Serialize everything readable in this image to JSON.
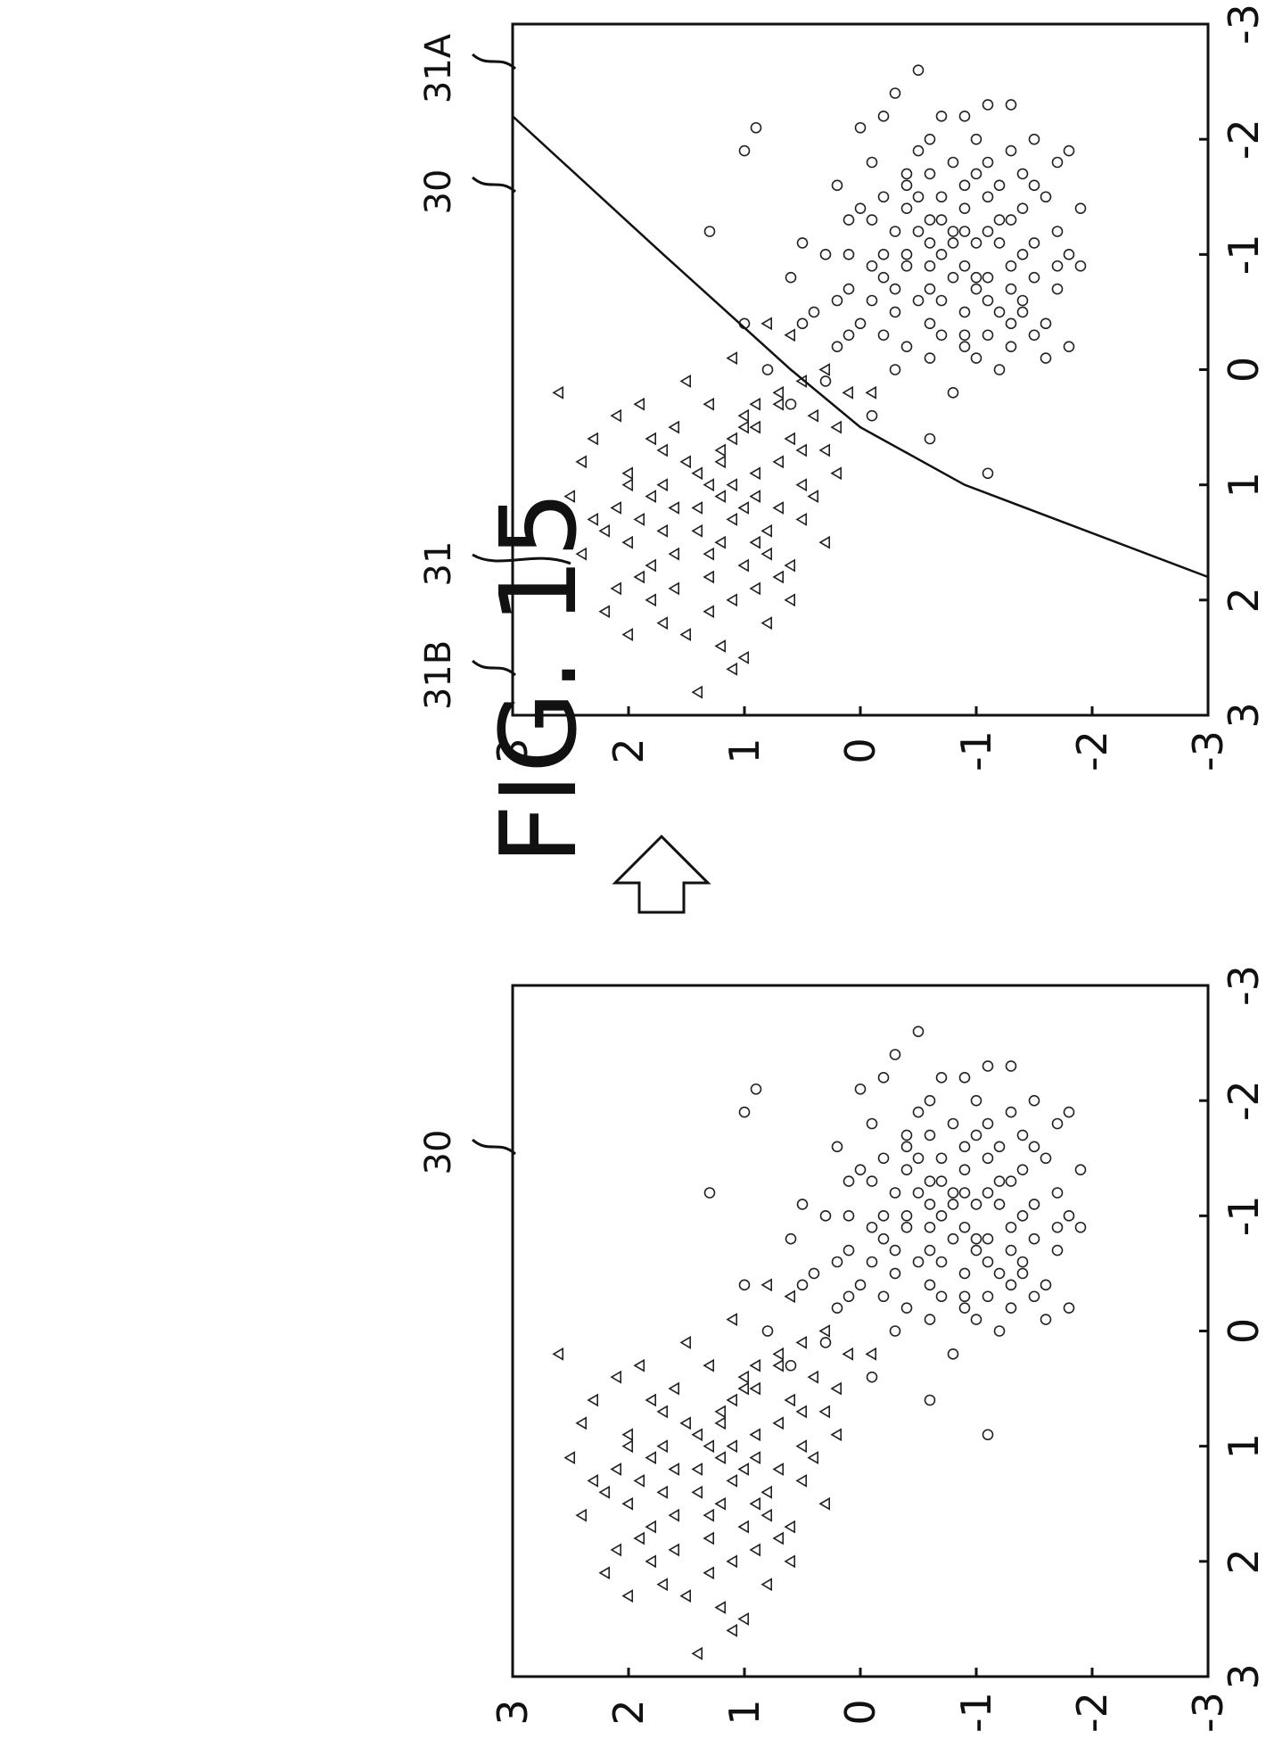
{
  "figure_title": "FIG. 15",
  "transition_icon": "hollow-arrow-icon",
  "chart_data": [
    {
      "type": "scatter",
      "panel": "before",
      "xlim": [
        -3,
        3
      ],
      "ylim": [
        -3,
        3
      ],
      "x_ticks": [
        "-3",
        "-2",
        "-1",
        "0",
        "1",
        "2",
        "3"
      ],
      "y_ticks": [
        "-3",
        "-2",
        "-1",
        "0",
        "1",
        "2",
        "3"
      ],
      "grid": false,
      "ref_labels": [
        "30"
      ],
      "series": [
        {
          "marker": "triangle",
          "points": [
            [
              1.0,
              2.0
            ],
            [
              1.2,
              1.4
            ],
            [
              0.5,
              1.0
            ],
            [
              1.4,
              0.8
            ],
            [
              0.2,
              0.7
            ],
            [
              1.5,
              1.2
            ],
            [
              0.8,
              1.5
            ],
            [
              1.8,
              1.9
            ],
            [
              2.2,
              1.7
            ],
            [
              0.3,
              1.3
            ],
            [
              1.1,
              0.4
            ],
            [
              0.6,
              1.8
            ],
            [
              1.3,
              2.3
            ],
            [
              2.0,
              1.1
            ],
            [
              0.9,
              0.9
            ],
            [
              1.6,
              1.6
            ],
            [
              0.4,
              2.1
            ],
            [
              1.7,
              0.6
            ],
            [
              2.4,
              1.2
            ],
            [
              0.1,
              1.5
            ],
            [
              1.0,
              1.1
            ],
            [
              1.2,
              0.7
            ],
            [
              0.7,
              0.3
            ],
            [
              1.5,
              2.0
            ],
            [
              0.8,
              2.4
            ],
            [
              2.1,
              2.2
            ],
            [
              1.9,
              0.9
            ],
            [
              0.5,
              1.6
            ],
            [
              1.4,
              1.4
            ],
            [
              0.3,
              0.9
            ],
            [
              1.1,
              1.8
            ],
            [
              0.6,
              0.6
            ],
            [
              2.3,
              1.5
            ],
            [
              1.0,
              1.3
            ],
            [
              0.9,
              2.0
            ],
            [
              1.8,
              1.3
            ],
            [
              0.2,
              2.6
            ],
            [
              1.3,
              0.5
            ],
            [
              1.6,
              0.8
            ],
            [
              2.5,
              1.0
            ],
            [
              0.4,
              0.4
            ],
            [
              1.2,
              1.0
            ],
            [
              0.7,
              1.2
            ],
            [
              2.0,
              1.8
            ],
            [
              1.5,
              0.3
            ],
            [
              0.8,
              0.7
            ],
            [
              1.9,
              2.1
            ],
            [
              1.1,
              2.5
            ],
            [
              0.5,
              0.2
            ],
            [
              1.7,
              1.0
            ],
            [
              2.8,
              1.4
            ],
            [
              1.0,
              0.5
            ],
            [
              0.3,
              1.9
            ],
            [
              1.4,
              1.7
            ],
            [
              2.2,
              0.8
            ],
            [
              0.6,
              2.3
            ],
            [
              1.2,
              1.6
            ],
            [
              0.9,
              0.2
            ],
            [
              1.6,
              2.4
            ],
            [
              -0.1,
              1.1
            ],
            [
              0.1,
              0.5
            ],
            [
              0.0,
              0.3
            ],
            [
              -0.3,
              0.6
            ],
            [
              -0.4,
              0.8
            ],
            [
              0.2,
              0.1
            ],
            [
              1.3,
              1.1
            ],
            [
              1.8,
              0.7
            ],
            [
              0.4,
              1.0
            ],
            [
              1.1,
              0.9
            ],
            [
              2.1,
              1.3
            ],
            [
              0.7,
              1.7
            ],
            [
              1.5,
              0.9
            ],
            [
              0.9,
              1.4
            ],
            [
              1.3,
              1.9
            ],
            [
              0.6,
              1.1
            ],
            [
              1.9,
              1.6
            ],
            [
              2.6,
              1.1
            ],
            [
              1.4,
              2.2
            ],
            [
              0.2,
              -0.1
            ],
            [
              0.5,
              0.9
            ],
            [
              1.0,
              1.7
            ],
            [
              1.7,
              1.8
            ],
            [
              0.8,
              1.2
            ],
            [
              2.0,
              0.6
            ],
            [
              1.2,
              2.1
            ],
            [
              0.3,
              0.7
            ],
            [
              1.6,
              1.3
            ],
            [
              2.3,
              2.0
            ],
            [
              0.7,
              0.5
            ],
            [
              1.1,
              1.2
            ]
          ]
        },
        {
          "marker": "circle",
          "points": [
            [
              -0.8,
              -1.0
            ],
            [
              -1.2,
              -0.5
            ],
            [
              -0.6,
              0.2
            ],
            [
              -1.0,
              -0.7
            ],
            [
              -1.5,
              -0.2
            ],
            [
              -0.4,
              -0.6
            ],
            [
              -0.9,
              -1.3
            ],
            [
              -1.3,
              0.1
            ],
            [
              -0.7,
              -0.3
            ],
            [
              -1.8,
              -0.8
            ],
            [
              -0.3,
              -0.9
            ],
            [
              -1.1,
              -1.5
            ],
            [
              -0.5,
              0.4
            ],
            [
              -1.6,
              -1.2
            ],
            [
              -0.2,
              -0.4
            ],
            [
              -1.4,
              -0.9
            ],
            [
              -0.8,
              0.6
            ],
            [
              -1.0,
              0.3
            ],
            [
              -0.6,
              -1.4
            ],
            [
              -1.7,
              -0.4
            ],
            [
              -2.0,
              -0.6
            ],
            [
              -0.9,
              -0.1
            ],
            [
              -1.2,
              -1.1
            ],
            [
              -0.4,
              0.0
            ],
            [
              -1.5,
              -1.6
            ],
            [
              -0.1,
              -1.0
            ],
            [
              -0.7,
              -1.7
            ],
            [
              -1.9,
              -1.3
            ],
            [
              -1.1,
              0.5
            ],
            [
              -0.5,
              -1.2
            ],
            [
              -1.3,
              -0.6
            ],
            [
              -2.2,
              -0.9
            ],
            [
              -0.3,
              -0.2
            ],
            [
              -1.6,
              0.2
            ],
            [
              -0.8,
              -0.8
            ],
            [
              -1.0,
              -1.8
            ],
            [
              -2.1,
              0.0
            ],
            [
              -0.6,
              -0.5
            ],
            [
              -1.4,
              -1.4
            ],
            [
              -0.2,
              0.2
            ],
            [
              -1.8,
              -0.1
            ],
            [
              -0.9,
              -0.4
            ],
            [
              -1.2,
              -0.3
            ],
            [
              -0.4,
              -1.6
            ],
            [
              -1.7,
              -1.0
            ],
            [
              -1.1,
              -0.8
            ],
            [
              -0.7,
              0.1
            ],
            [
              -2.0,
              -1.5
            ],
            [
              -1.5,
              -0.7
            ],
            [
              -0.3,
              -0.7
            ],
            [
              -1.3,
              -1.2
            ],
            [
              -0.8,
              -1.5
            ],
            [
              -1.9,
              -0.5
            ],
            [
              -1.0,
              -0.2
            ],
            [
              -0.5,
              -0.9
            ],
            [
              -2.3,
              -1.1
            ],
            [
              -0.6,
              -1.1
            ],
            [
              -1.4,
              0.0
            ],
            [
              -1.6,
              -0.4
            ],
            [
              -0.9,
              -1.9
            ],
            [
              -0.2,
              -1.3
            ],
            [
              -1.2,
              -1.7
            ],
            [
              -2.4,
              -0.3
            ],
            [
              -0.4,
              0.5
            ],
            [
              -1.1,
              -1.0
            ],
            [
              -0.1,
              -0.6
            ],
            [
              -1.8,
              -1.7
            ],
            [
              -0.7,
              -1.0
            ],
            [
              -1.3,
              -0.1
            ],
            [
              -2.6,
              -0.5
            ],
            [
              -0.8,
              -0.2
            ],
            [
              -1.5,
              -1.1
            ],
            [
              -0.9,
              -0.6
            ],
            [
              -1.7,
              -0.6
            ],
            [
              -1.0,
              -1.4
            ],
            [
              -0.6,
              -0.7
            ],
            [
              -2.2,
              -0.2
            ],
            [
              -1.4,
              -1.9
            ],
            [
              -0.3,
              0.1
            ],
            [
              -1.2,
              -0.9
            ],
            [
              -1.9,
              1.0
            ],
            [
              -2.1,
              0.9
            ],
            [
              -1.2,
              1.3
            ],
            [
              -0.4,
              1.0
            ],
            [
              0.0,
              0.8
            ],
            [
              0.1,
              0.3
            ],
            [
              0.3,
              0.6
            ],
            [
              0.0,
              -0.3
            ],
            [
              0.2,
              -0.8
            ],
            [
              0.0,
              -1.2
            ],
            [
              -0.3,
              -1.5
            ],
            [
              -0.2,
              -1.8
            ],
            [
              -1.3,
              -1.3
            ],
            [
              -1.9,
              -1.8
            ],
            [
              -2.3,
              -1.3
            ],
            [
              -0.9,
              -1.7
            ],
            [
              -0.7,
              -1.3
            ],
            [
              -1.6,
              -0.9
            ],
            [
              -0.5,
              -0.3
            ],
            [
              -1.1,
              -0.6
            ],
            [
              -0.8,
              -1.1
            ],
            [
              -1.4,
              -0.4
            ],
            [
              -1.0,
              0.1
            ],
            [
              -0.6,
              -0.1
            ],
            [
              -1.2,
              -0.8
            ],
            [
              -1.7,
              -1.4
            ],
            [
              -2.0,
              -1.0
            ],
            [
              -0.2,
              -0.9
            ],
            [
              -0.4,
              -1.3
            ],
            [
              -1.5,
              -0.5
            ],
            [
              -1.1,
              -1.2
            ],
            [
              -0.9,
              -0.9
            ],
            [
              -1.3,
              -0.7
            ],
            [
              -0.7,
              -0.6
            ],
            [
              -1.8,
              -1.1
            ],
            [
              -1.0,
              -0.4
            ],
            [
              -0.5,
              -1.4
            ],
            [
              -2.2,
              -0.7
            ],
            [
              -1.6,
              -1.5
            ],
            [
              -0.3,
              -1.1
            ],
            [
              0.4,
              -0.1
            ],
            [
              0.9,
              -1.1
            ],
            [
              0.6,
              -0.6
            ],
            [
              -0.1,
              -1.6
            ]
          ]
        }
      ]
    },
    {
      "type": "scatter",
      "panel": "after",
      "xlim": [
        -3,
        3
      ],
      "ylim": [
        -3,
        3
      ],
      "x_ticks": [
        "-3",
        "-2",
        "-1",
        "0",
        "1",
        "2",
        "3"
      ],
      "y_ticks": [
        "-3",
        "-2",
        "-1",
        "0",
        "1",
        "2",
        "3"
      ],
      "grid": false,
      "ref_labels": [
        "31B",
        "31",
        "30",
        "31A"
      ],
      "boundary_line": [
        [
          -2.2,
          3.0
        ],
        [
          -1.0,
          1.7
        ],
        [
          0.0,
          0.6
        ],
        [
          0.5,
          0.0
        ],
        [
          1.0,
          -0.9
        ],
        [
          1.8,
          -3.0
        ]
      ],
      "series": "same as panel \"before\""
    }
  ]
}
